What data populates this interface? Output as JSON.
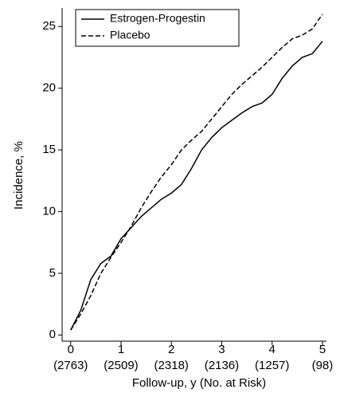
{
  "chart_data": {
    "type": "line",
    "xlabel": "Follow-up, y (No. at Risk)",
    "ylabel": "Incidence, %",
    "x": [
      0,
      0.2,
      0.4,
      0.6,
      0.8,
      1.0,
      1.2,
      1.4,
      1.6,
      1.8,
      2.0,
      2.2,
      2.4,
      2.6,
      2.8,
      3.0,
      3.2,
      3.4,
      3.6,
      3.8,
      4.0,
      4.2,
      4.4,
      4.6,
      4.8,
      5.0
    ],
    "series": [
      {
        "name": "Estrogen-Progestin",
        "color": "#000000",
        "line_style": "solid",
        "values": [
          0.4,
          2,
          4.5,
          5.8,
          6.4,
          7.8,
          8.7,
          9.6,
          10.3,
          11,
          11.5,
          12.2,
          13.5,
          15,
          16,
          16.8,
          17.4,
          18,
          18.5,
          18.8,
          19.5,
          20.8,
          21.8,
          22.5,
          22.8,
          23.8
        ]
      },
      {
        "name": "Placebo",
        "color": "#000000",
        "line_style": "dashed",
        "values": [
          0.4,
          1.7,
          3.2,
          5.0,
          6.3,
          7.5,
          8.8,
          10.3,
          11.6,
          12.8,
          13.8,
          15,
          15.8,
          16.5,
          17.5,
          18.5,
          19.5,
          20.3,
          21,
          21.7,
          22.5,
          23.3,
          24,
          24.3,
          24.8,
          26
        ]
      }
    ],
    "at_risk_labels": [
      "(2763)",
      "(2509)",
      "(2318)",
      "(2136)",
      "(1257)",
      "(98)"
    ],
    "xlim": [
      -0.17,
      5.08
    ],
    "xticks": [
      0,
      1,
      2,
      3,
      4,
      5
    ],
    "ylim": [
      -0.5,
      26.5
    ],
    "yticks": [
      0,
      5,
      10,
      15,
      20,
      25
    ],
    "grid": false,
    "legend": "upper left"
  }
}
